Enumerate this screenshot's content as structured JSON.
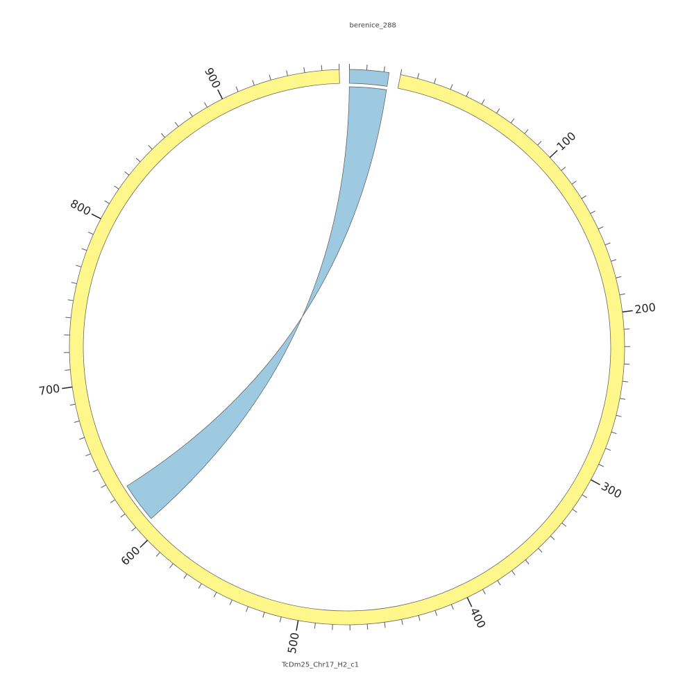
{
  "chart_data": {
    "type": "chord",
    "segments": [
      {
        "name": "berenice_288",
        "color": "#9ecae1",
        "length": 23,
        "ticks": [],
        "minor_ticks": [
          0,
          10,
          20
        ]
      },
      {
        "name": "TcDm25_Chr17_H2_c1",
        "color": "#fff78a",
        "length": 970,
        "ticks": [
          100,
          200,
          300,
          400,
          500,
          600,
          700,
          800,
          900
        ],
        "minor_ticks": [
          0,
          10,
          20,
          30,
          40,
          50,
          60,
          70,
          80,
          90,
          110,
          120,
          130,
          140,
          150,
          160,
          170,
          180,
          190,
          210,
          220,
          230,
          240,
          250,
          260,
          270,
          280,
          290,
          310,
          320,
          330,
          340,
          350,
          360,
          370,
          380,
          390,
          410,
          420,
          430,
          440,
          450,
          460,
          470,
          480,
          490,
          510,
          520,
          530,
          540,
          550,
          560,
          570,
          580,
          590,
          610,
          620,
          630,
          640,
          650,
          660,
          670,
          680,
          690,
          710,
          720,
          730,
          740,
          750,
          760,
          770,
          780,
          790,
          810,
          820,
          830,
          840,
          850,
          860,
          870,
          880,
          890,
          910,
          920,
          930,
          940,
          950,
          960,
          970
        ]
      }
    ],
    "links": [
      {
        "source": "berenice_288",
        "source_start": 0,
        "source_end": 23,
        "target": "TcDm25_Chr17_H2_c1",
        "target_start": 608,
        "target_end": 633,
        "color": "#9ecae1",
        "inverted": true
      }
    ]
  }
}
